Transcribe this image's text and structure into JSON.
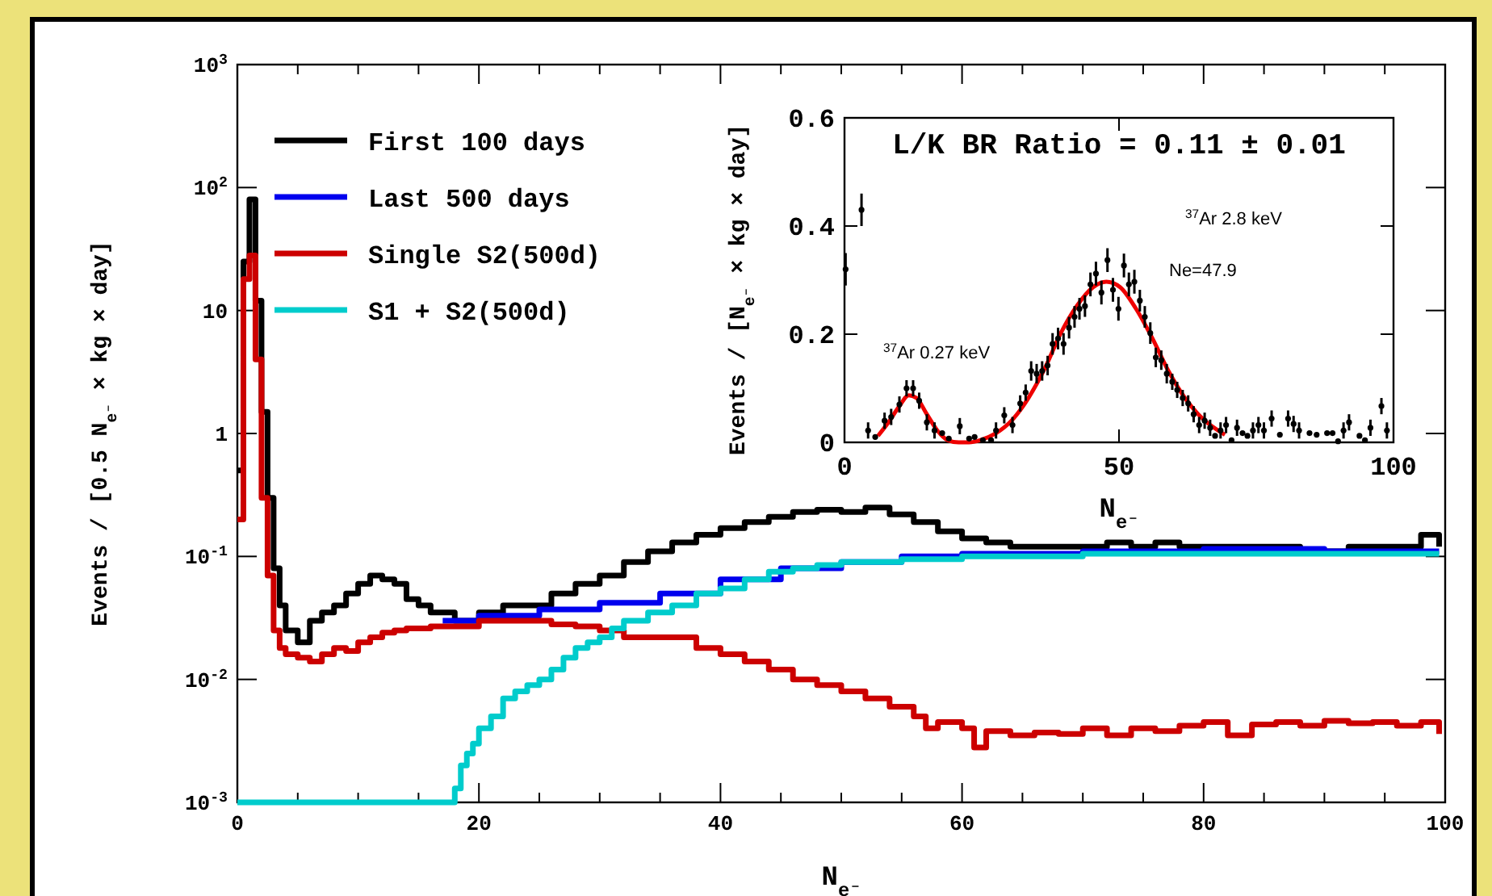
{
  "chart_data": [
    {
      "type": "step",
      "xlabel": "N$_{e⁻}$",
      "ylabel": "Events / [0.5 N$_{e⁻}$ × kg × day]",
      "log": "y",
      "grid": false,
      "legend": "top left",
      "xlim": [
        0,
        100
      ],
      "xticks": [
        0,
        {
          "value": 5,
          "label": null
        },
        {
          "value": 10,
          "label": null
        },
        {
          "value": 15,
          "label": null
        },
        20,
        {
          "value": 25,
          "label": null
        },
        {
          "value": 30,
          "label": null
        },
        {
          "value": 35,
          "label": null
        },
        40,
        {
          "value": 45,
          "label": null
        },
        {
          "value": 50,
          "label": null
        },
        {
          "value": 55,
          "label": null
        },
        60,
        {
          "value": 65,
          "label": null
        },
        {
          "value": 70,
          "label": null
        },
        {
          "value": 75,
          "label": null
        },
        80,
        {
          "value": 85,
          "label": null
        },
        {
          "value": 90,
          "label": null
        },
        {
          "value": 95,
          "label": null
        },
        100
      ],
      "ylim": [
        0.001,
        1000
      ],
      "yticks": [
        {
          "value": 0.001,
          "label": "10$^{-3}$"
        },
        {
          "value": 0.01,
          "label": "10$^{-2}$"
        },
        {
          "value": 0.1,
          "label": "10$^{-1}$"
        },
        1,
        10,
        {
          "value": 100,
          "label": "10$^{2}$"
        },
        {
          "value": 1000,
          "label": "10$^{3}$"
        }
      ],
      "series": [
        {
          "name": "First 100 days",
          "color": "#000000",
          "x": [
            0,
            0.5,
            1,
            1.5,
            2,
            2.5,
            3,
            3.5,
            4,
            5,
            6,
            7,
            8,
            9,
            10,
            11,
            12,
            13,
            14,
            15,
            16,
            17,
            18,
            20,
            22,
            24,
            26,
            28,
            30,
            32,
            34,
            36,
            38,
            40,
            42,
            44,
            46,
            48,
            50,
            52,
            54,
            56,
            58,
            60,
            62,
            64,
            66,
            68,
            70,
            72,
            74,
            76,
            78,
            80,
            84,
            88,
            92,
            96,
            98,
            99.5
          ],
          "values": [
            0.5,
            25,
            80,
            12,
            1.5,
            0.3,
            0.08,
            0.04,
            0.025,
            0.02,
            0.03,
            0.035,
            0.04,
            0.05,
            0.06,
            0.07,
            0.065,
            0.06,
            0.045,
            0.04,
            0.035,
            0.035,
            0.03,
            0.035,
            0.04,
            0.04,
            0.05,
            0.06,
            0.07,
            0.09,
            0.11,
            0.13,
            0.15,
            0.17,
            0.19,
            0.21,
            0.23,
            0.24,
            0.23,
            0.25,
            0.22,
            0.19,
            0.16,
            0.14,
            0.13,
            0.12,
            0.12,
            0.12,
            0.12,
            0.13,
            0.12,
            0.13,
            0.12,
            0.12,
            0.12,
            0.11,
            0.12,
            0.12,
            0.15,
            0.12
          ]
        },
        {
          "name": "Last 500 days",
          "color": "#0000ee",
          "x": [
            17,
            20,
            25,
            30,
            35,
            40,
            45,
            50,
            55,
            60,
            70,
            80,
            90,
            99.5
          ],
          "values": [
            0.03,
            0.033,
            0.037,
            0.042,
            0.05,
            0.065,
            0.08,
            0.09,
            0.1,
            0.105,
            0.11,
            0.115,
            0.11,
            0.11
          ]
        },
        {
          "name": "Single S2(500d)",
          "color": "#cc0000",
          "x": [
            0,
            0.5,
            1,
            1.5,
            2,
            2.5,
            3,
            3.5,
            4,
            5,
            6,
            7,
            8,
            9,
            10,
            11,
            12,
            13,
            14,
            16,
            18,
            20,
            22,
            24,
            26,
            28,
            30,
            32,
            34,
            36,
            38,
            40,
            42,
            44,
            46,
            48,
            50,
            52,
            54,
            56,
            57,
            58,
            60,
            61,
            62,
            64,
            66,
            68,
            70,
            72,
            74,
            76,
            78,
            80,
            82,
            84,
            86,
            88,
            90,
            92,
            94,
            96,
            98,
            99.5
          ],
          "values": [
            0.2,
            18,
            28,
            4,
            0.3,
            0.07,
            0.025,
            0.018,
            0.016,
            0.015,
            0.014,
            0.016,
            0.018,
            0.017,
            0.02,
            0.022,
            0.024,
            0.025,
            0.026,
            0.027,
            0.027,
            0.03,
            0.03,
            0.03,
            0.028,
            0.027,
            0.025,
            0.022,
            0.022,
            0.022,
            0.018,
            0.016,
            0.014,
            0.012,
            0.01,
            0.009,
            0.008,
            0.007,
            0.006,
            0.005,
            0.004,
            0.0045,
            0.004,
            0.0028,
            0.0038,
            0.0035,
            0.0037,
            0.0036,
            0.004,
            0.0035,
            0.004,
            0.0038,
            0.0042,
            0.0045,
            0.0035,
            0.0043,
            0.0045,
            0.0042,
            0.0046,
            0.0044,
            0.0045,
            0.0042,
            0.0045,
            0.0036
          ]
        },
        {
          "name": "S1 + S2(500d)",
          "color": "#00cccc",
          "x": [
            0,
            18,
            18.5,
            19,
            19.5,
            20,
            21,
            22,
            23,
            24,
            25,
            26,
            27,
            28,
            29,
            30,
            31,
            32,
            34,
            36,
            38,
            40,
            42,
            44,
            46,
            48,
            50,
            55,
            60,
            70,
            80,
            90,
            99.5
          ],
          "values": [
            0.001,
            0.0013,
            0.002,
            0.0025,
            0.003,
            0.004,
            0.005,
            0.007,
            0.008,
            0.009,
            0.01,
            0.012,
            0.015,
            0.018,
            0.02,
            0.022,
            0.026,
            0.03,
            0.035,
            0.04,
            0.05,
            0.055,
            0.065,
            0.075,
            0.08,
            0.085,
            0.09,
            0.095,
            0.1,
            0.105,
            0.105,
            0.105,
            0.105
          ]
        }
      ]
    },
    {
      "type": "scatter",
      "title": "L/K BR Ratio = 0.11 ± 0.01",
      "xlabel": "N$_{e⁻}$",
      "ylabel": "Events / [N$_{e⁻}$ × kg × day]",
      "grid": false,
      "legend": false,
      "xlim": [
        0,
        100
      ],
      "xticks": [
        0,
        50,
        100
      ],
      "ylim": [
        0,
        0.6
      ],
      "yticks": [
        0,
        0.2,
        0.4,
        0.6
      ],
      "annotations": [
        "$^{37}$Ar 0.27 keV",
        "$^{37}$Ar 2.8 keV",
        "Ne=47.9"
      ],
      "series": [
        {
          "color": "#000000",
          "marker": "circle",
          "x": [
            0.2,
            3.1,
            4.3,
            5.6,
            7.3,
            8.5,
            10,
            11.3,
            12.5,
            13.6,
            15,
            16.4,
            17.8,
            19,
            21,
            22.7,
            23.7,
            25.2,
            26.7,
            27.6,
            29.1,
            30.6,
            32,
            33,
            34,
            35,
            36,
            37,
            37.9,
            38.9,
            39.9,
            40.9,
            41.9,
            42.8,
            43.8,
            44.8,
            45.8,
            46.8,
            47.9,
            48.9,
            49.9,
            50.9,
            51.8,
            52.8,
            53.8,
            54.7,
            55.7,
            56.7,
            57.7,
            58.7,
            59.7,
            60.6,
            61.6,
            62.6,
            63.6,
            64.6,
            65.6,
            66.6,
            67.5,
            68.5,
            69.5,
            70.5,
            71.5,
            72.5,
            73.4,
            74.4,
            75.4,
            76.4,
            77.8,
            79.3,
            80.8,
            81.8,
            82.8,
            84.7,
            86,
            87.9,
            88.9,
            89.9,
            90.9,
            91.9,
            93.8,
            94.8,
            95.8,
            97.8,
            98.8
          ],
          "values": [
            0.32,
            0.43,
            0.022,
            0.01,
            0.04,
            0.047,
            0.07,
            0.1,
            0.1,
            0.077,
            0.037,
            0.022,
            0.017,
            0.007,
            0.03,
            0.007,
            0.01,
            0.004,
            0.004,
            0.022,
            0.05,
            0.032,
            0.072,
            0.092,
            0.132,
            0.127,
            0.132,
            0.142,
            0.182,
            0.192,
            0.182,
            0.212,
            0.232,
            0.247,
            0.252,
            0.292,
            0.312,
            0.277,
            0.337,
            0.282,
            0.247,
            0.327,
            0.292,
            0.297,
            0.262,
            0.232,
            0.202,
            0.157,
            0.152,
            0.127,
            0.112,
            0.097,
            0.082,
            0.072,
            0.052,
            0.032,
            0.04,
            0.027,
            0.012,
            0.022,
            0.032,
            0.004,
            0.027,
            0.017,
            0.012,
            0.022,
            0.032,
            0.022,
            0.044,
            0.014,
            0.044,
            0.034,
            0.022,
            0.017,
            0.014,
            0.017,
            0.017,
            0.002,
            0.022,
            0.037,
            0.012,
            0.004,
            0.027,
            0.067,
            0.022
          ],
          "errors": [
            0.03,
            0.03,
            0.015,
            null,
            0.015,
            0.015,
            0.015,
            0.015,
            0.015,
            0.015,
            0.015,
            0.015,
            null,
            null,
            0.015,
            null,
            null,
            null,
            null,
            0.015,
            0.015,
            0.015,
            0.015,
            0.015,
            0.018,
            0.018,
            0.018,
            0.018,
            0.02,
            0.02,
            0.02,
            0.02,
            0.02,
            0.02,
            0.02,
            0.022,
            0.022,
            0.022,
            0.022,
            0.022,
            0.022,
            0.022,
            0.022,
            0.022,
            0.02,
            0.02,
            0.02,
            0.018,
            0.018,
            0.018,
            0.015,
            0.015,
            0.015,
            0.015,
            0.015,
            0.015,
            0.015,
            0.015,
            null,
            0.015,
            0.015,
            null,
            0.015,
            null,
            null,
            0.015,
            0.015,
            0.015,
            0.015,
            null,
            0.015,
            0.015,
            0.015,
            null,
            null,
            null,
            null,
            null,
            0.015,
            0.015,
            null,
            null,
            0.015,
            0.015,
            0.015
          ]
        },
        {
          "type": "line",
          "color": "#ee0000",
          "marker": "none",
          "x": [
            6.1,
            8,
            10,
            11.7,
            13.1,
            15,
            16.9,
            18.8,
            20.8,
            22.7,
            24.7,
            27.6,
            30.6,
            33.5,
            36.5,
            39.4,
            42.3,
            45.3,
            47.7,
            50.2,
            53.1,
            56.1,
            59,
            62,
            64.9,
            69.3
          ],
          "values": [
            0.012,
            0.037,
            0.067,
            0.087,
            0.082,
            0.052,
            0.022,
            0.004,
            0,
            0,
            0.004,
            0.017,
            0.042,
            0.082,
            0.137,
            0.202,
            0.252,
            0.287,
            0.297,
            0.287,
            0.247,
            0.192,
            0.132,
            0.082,
            0.047,
            0.014
          ]
        }
      ]
    }
  ]
}
